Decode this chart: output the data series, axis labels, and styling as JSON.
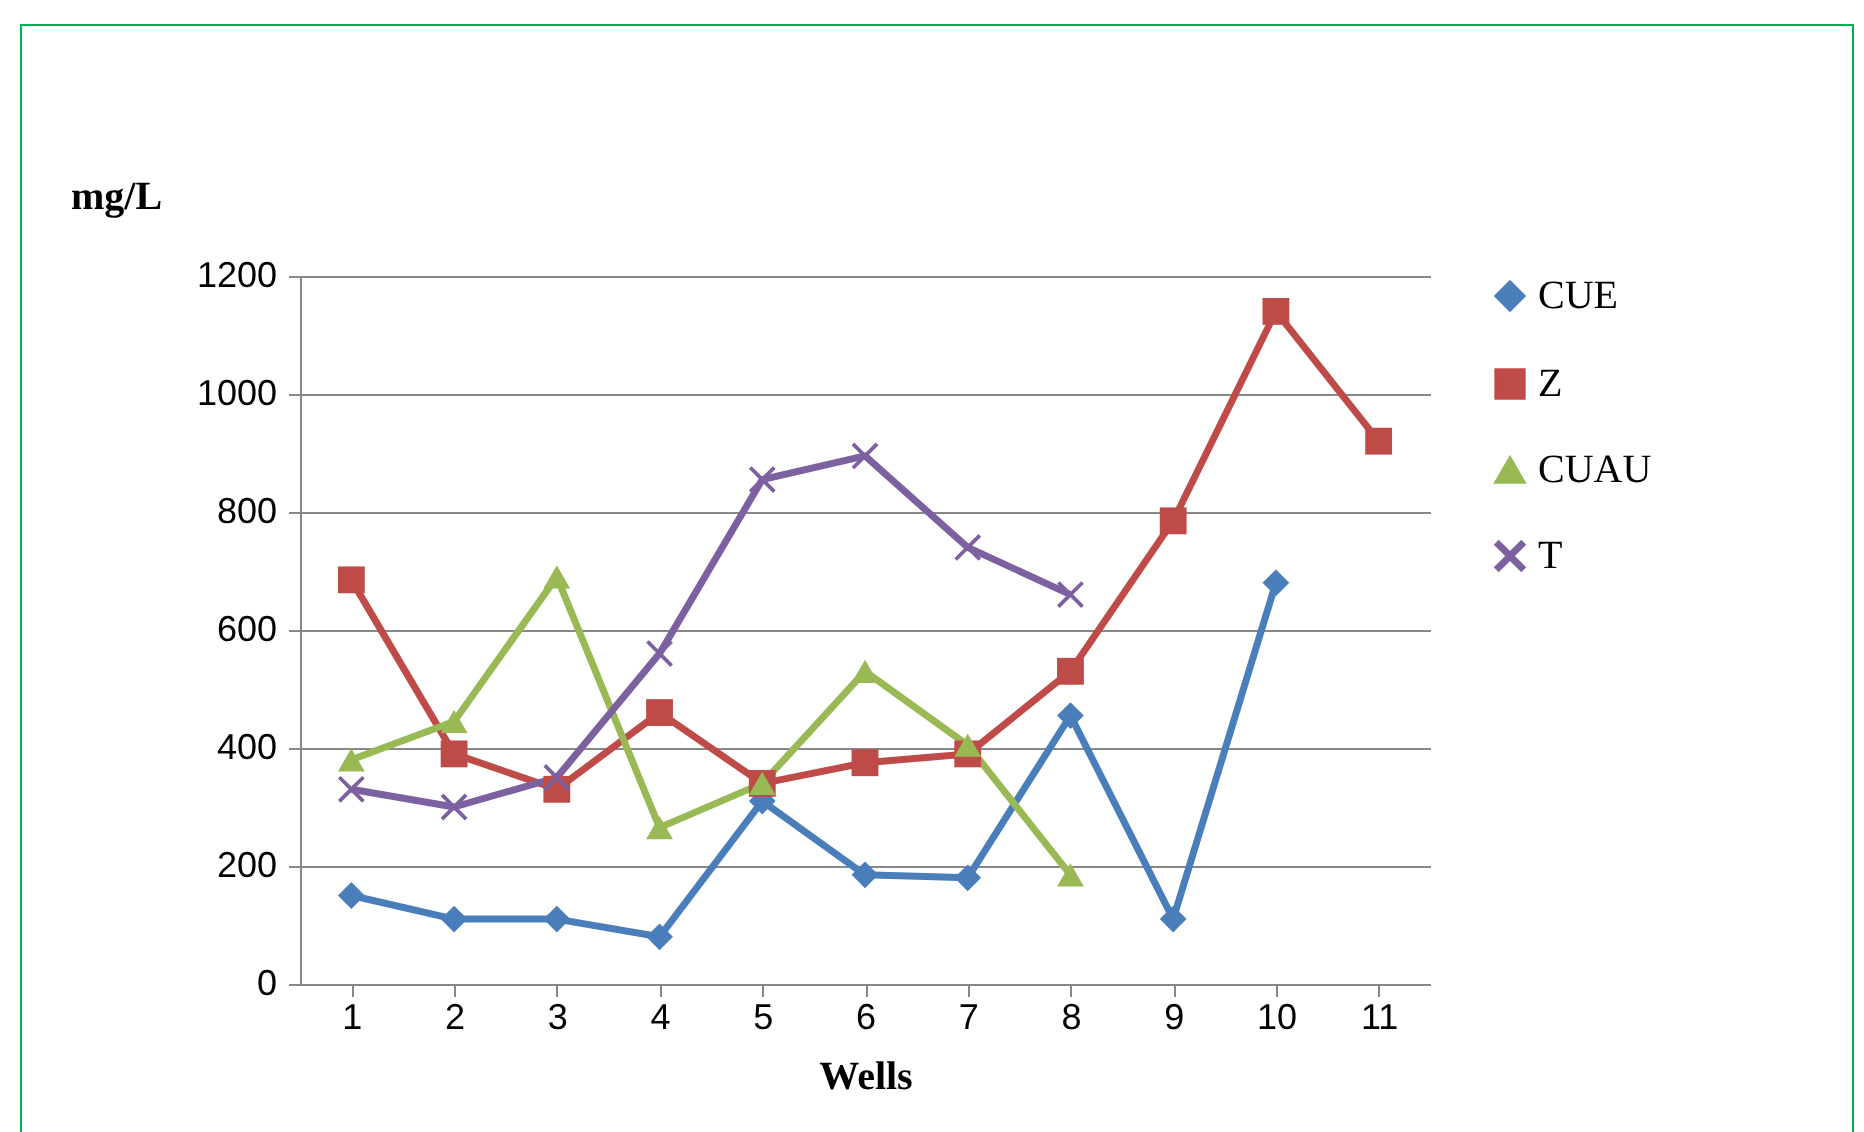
{
  "chart_data": {
    "type": "line",
    "ylabel": "mg/L",
    "xlabel": "Wells",
    "categories": [
      "1",
      "2",
      "3",
      "4",
      "5",
      "6",
      "7",
      "8",
      "9",
      "10",
      "11"
    ],
    "series": [
      {
        "name": "CUE",
        "color": "#4a7ebb",
        "marker": "diamond",
        "values": [
          150,
          110,
          110,
          80,
          310,
          185,
          180,
          455,
          110,
          680,
          null
        ]
      },
      {
        "name": "Z",
        "color": "#be4b48",
        "marker": "square",
        "values": [
          685,
          390,
          330,
          460,
          340,
          375,
          390,
          530,
          785,
          1140,
          920
        ]
      },
      {
        "name": "CUAU",
        "color": "#98b954",
        "marker": "triangle",
        "values": [
          380,
          445,
          690,
          265,
          340,
          530,
          405,
          185,
          null,
          null,
          null
        ]
      },
      {
        "name": "T",
        "color": "#7d60a0",
        "marker": "cross",
        "values": [
          330,
          300,
          350,
          560,
          855,
          895,
          740,
          660,
          null,
          null,
          null
        ]
      }
    ],
    "ylim": [
      0,
      1200
    ],
    "yticks": [
      0,
      200,
      400,
      600,
      800,
      1000,
      1200
    ],
    "grid": "y",
    "legend": "right"
  }
}
